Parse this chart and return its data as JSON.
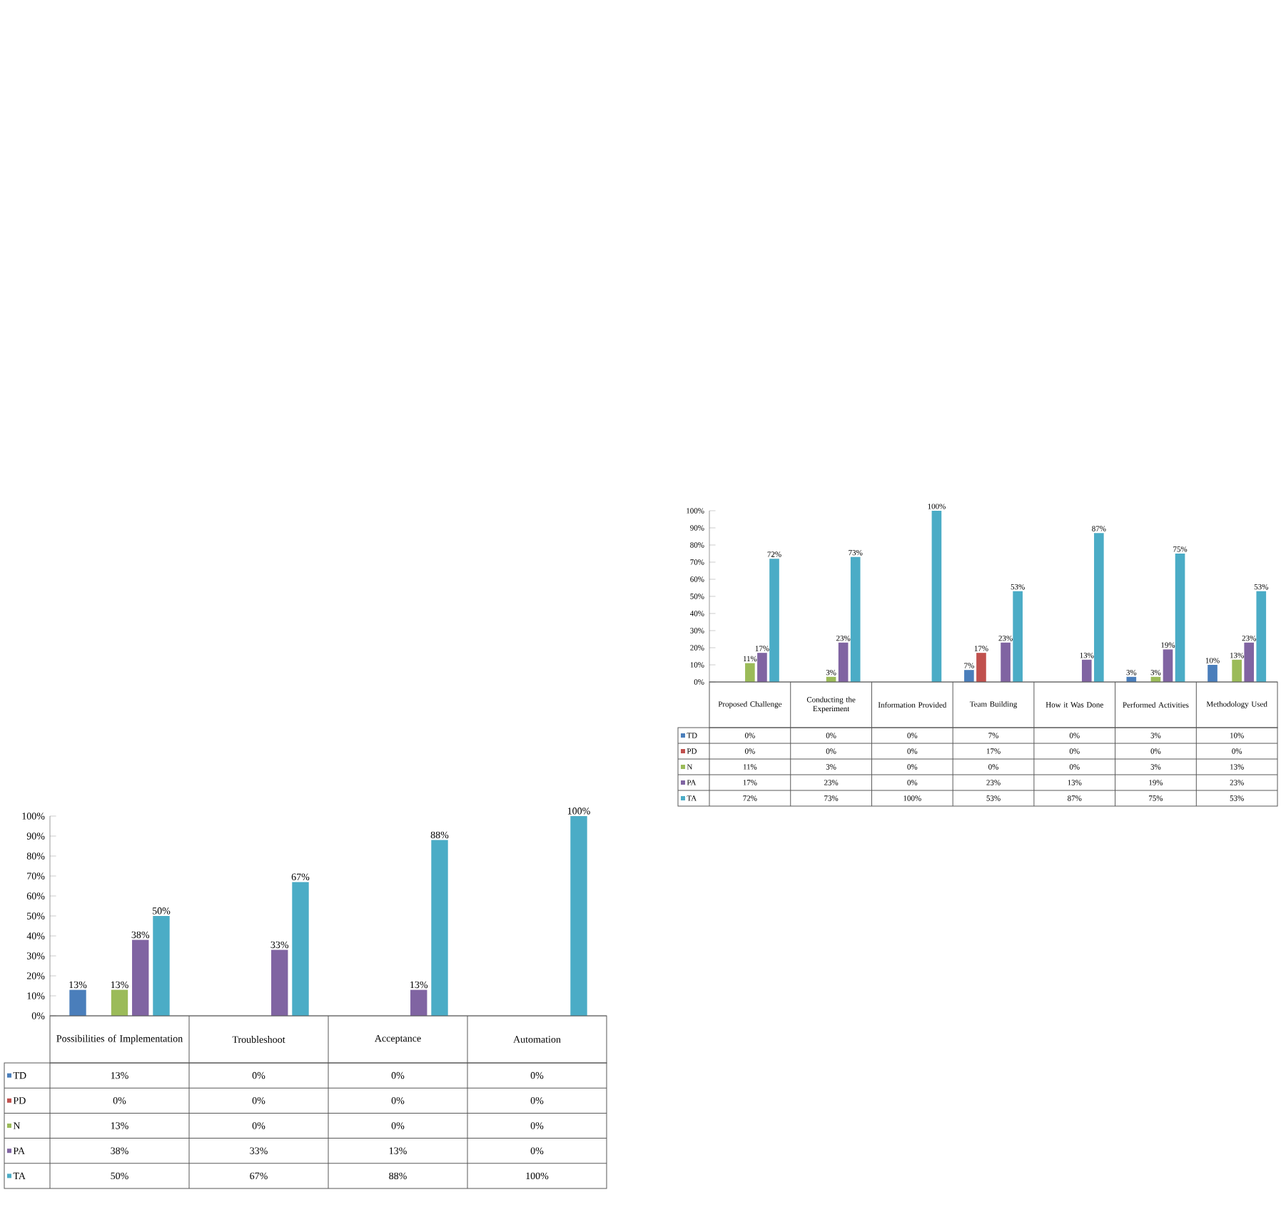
{
  "chart_data": [
    {
      "type": "bar",
      "categories": [
        "Possibilities of Implementation",
        "Troubleshoot",
        "Acceptance",
        "Automation"
      ],
      "ylim": [
        0,
        100
      ],
      "legend": "bottom",
      "yticks": [
        {
          "value": 0,
          "label": "0%"
        },
        {
          "value": 10,
          "label": "10%"
        },
        {
          "value": 20,
          "label": "20%"
        },
        {
          "value": 30,
          "label": "30%"
        },
        {
          "value": 40,
          "label": "40%"
        },
        {
          "value": 50,
          "label": "50%"
        },
        {
          "value": 60,
          "label": "60%"
        },
        {
          "value": 70,
          "label": "70%"
        },
        {
          "value": 80,
          "label": "80%"
        },
        {
          "value": 90,
          "label": "90%"
        },
        {
          "value": 100,
          "label": "100%"
        }
      ],
      "series": [
        {
          "name": "TD",
          "color": "#4a7ebb",
          "values": [
            13,
            0,
            0,
            0
          ],
          "value_labels": [
            "13%",
            "0%",
            "0%",
            "0%"
          ]
        },
        {
          "name": "PD",
          "color": "#c0504d",
          "values": [
            0,
            0,
            0,
            0
          ],
          "value_labels": [
            "0%",
            "0%",
            "0%",
            "0%"
          ]
        },
        {
          "name": "N",
          "color": "#9bbb59",
          "values": [
            13,
            0,
            0,
            0
          ],
          "value_labels": [
            "13%",
            "0%",
            "0%",
            "0%"
          ]
        },
        {
          "name": "PA",
          "color": "#8064a2",
          "values": [
            38,
            33,
            13,
            0
          ],
          "value_labels": [
            "38%",
            "33%",
            "13%",
            "0%"
          ]
        },
        {
          "name": "TA",
          "color": "#4bacc6",
          "values": [
            50,
            67,
            88,
            100
          ],
          "value_labels": [
            "50%",
            "67%",
            "88%",
            "100%"
          ]
        }
      ]
    },
    {
      "type": "bar",
      "categories": [
        "Proposed Challenge",
        "Conducting the Experiment",
        "Information Provided",
        "Team Building",
        "How it Was Done",
        "Performed Activities",
        "Methodology Used"
      ],
      "ylim": [
        0,
        100
      ],
      "legend": "bottom",
      "yticks": [
        {
          "value": 0,
          "label": "0%"
        },
        {
          "value": 10,
          "label": "10%"
        },
        {
          "value": 20,
          "label": "20%"
        },
        {
          "value": 30,
          "label": "30%"
        },
        {
          "value": 40,
          "label": "40%"
        },
        {
          "value": 50,
          "label": "50%"
        },
        {
          "value": 60,
          "label": "60%"
        },
        {
          "value": 70,
          "label": "70%"
        },
        {
          "value": 80,
          "label": "80%"
        },
        {
          "value": 90,
          "label": "90%"
        },
        {
          "value": 100,
          "label": "100%"
        }
      ],
      "series": [
        {
          "name": "TD",
          "color": "#4a7ebb",
          "values": [
            0,
            0,
            0,
            7,
            0,
            3,
            10
          ],
          "value_labels": [
            "0%",
            "0%",
            "0%",
            "7%",
            "0%",
            "3%",
            "10%"
          ]
        },
        {
          "name": "PD",
          "color": "#c0504d",
          "values": [
            0,
            0,
            0,
            17,
            0,
            0,
            0
          ],
          "value_labels": [
            "0%",
            "0%",
            "0%",
            "17%",
            "0%",
            "0%",
            "0%"
          ]
        },
        {
          "name": "N",
          "color": "#9bbb59",
          "values": [
            11,
            3,
            0,
            0,
            0,
            3,
            13
          ],
          "value_labels": [
            "11%",
            "3%",
            "0%",
            "0%",
            "0%",
            "3%",
            "13%"
          ]
        },
        {
          "name": "PA",
          "color": "#8064a2",
          "values": [
            17,
            23,
            0,
            23,
            13,
            19,
            23
          ],
          "value_labels": [
            "17%",
            "23%",
            "0%",
            "23%",
            "13%",
            "19%",
            "23%"
          ]
        },
        {
          "name": "TA",
          "color": "#4bacc6",
          "values": [
            72,
            73,
            100,
            53,
            87,
            75,
            53
          ],
          "value_labels": [
            "72%",
            "73%",
            "100%",
            "53%",
            "87%",
            "75%",
            "53%"
          ]
        }
      ]
    }
  ]
}
